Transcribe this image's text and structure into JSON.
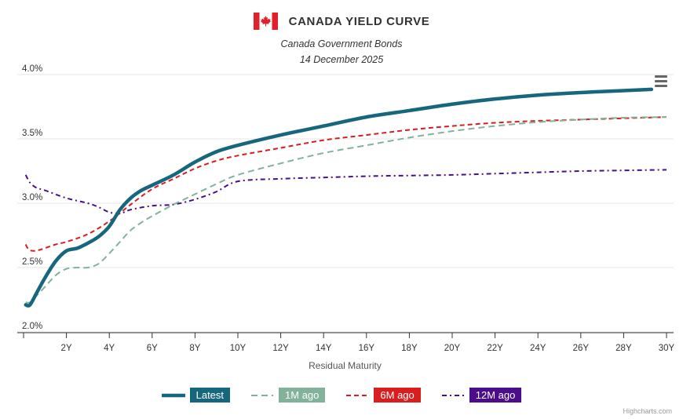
{
  "header": {
    "title": "CANADA YIELD CURVE",
    "subtitle": "Canada Government Bonds",
    "date": "14 December 2025"
  },
  "credits": "Highcharts.com",
  "chart_data": {
    "type": "line",
    "title": "CANADA YIELD CURVE",
    "subtitle": "Canada Government Bonds",
    "xlabel": "Residual Maturity",
    "ylabel": "",
    "xlim": [
      0,
      30
    ],
    "ylim": [
      2.0,
      4.0
    ],
    "x_ticks": [
      "2Y",
      "4Y",
      "6Y",
      "8Y",
      "10Y",
      "12Y",
      "14Y",
      "16Y",
      "18Y",
      "20Y",
      "22Y",
      "24Y",
      "26Y",
      "28Y",
      "30Y"
    ],
    "x_tick_values": [
      2,
      4,
      6,
      8,
      10,
      12,
      14,
      16,
      18,
      20,
      22,
      24,
      26,
      28,
      30
    ],
    "y_ticks": [
      "2.0%",
      "2.5%",
      "3.0%",
      "3.5%",
      "4.0%"
    ],
    "y_tick_values": [
      2.0,
      2.5,
      3.0,
      3.5,
      4.0
    ],
    "legend_position": "bottom-center",
    "series": [
      {
        "name": "Latest",
        "color": "#16677e",
        "dash": "solid",
        "x": [
          0.1,
          0.3,
          0.6,
          1,
          1.5,
          2,
          2.5,
          3,
          3.5,
          4,
          4.5,
          5,
          5.5,
          6,
          7,
          8,
          9,
          10,
          12,
          14,
          16,
          18,
          20,
          22,
          24,
          26,
          28,
          29.3
        ],
        "y": [
          2.21,
          2.21,
          2.3,
          2.42,
          2.55,
          2.63,
          2.65,
          2.69,
          2.74,
          2.82,
          2.95,
          3.04,
          3.1,
          3.14,
          3.22,
          3.32,
          3.4,
          3.45,
          3.53,
          3.6,
          3.67,
          3.72,
          3.77,
          3.81,
          3.84,
          3.86,
          3.875,
          3.885
        ]
      },
      {
        "name": "1M ago",
        "color": "#82b29a",
        "dash": "long-dash",
        "x": [
          0.1,
          0.3,
          0.6,
          1,
          1.5,
          2,
          2.5,
          3,
          3.5,
          4,
          4.5,
          5,
          5.5,
          6,
          7,
          8,
          9,
          10,
          12,
          14,
          16,
          18,
          20,
          22,
          24,
          26,
          28,
          30
        ],
        "y": [
          2.23,
          2.23,
          2.28,
          2.35,
          2.44,
          2.49,
          2.5,
          2.5,
          2.53,
          2.61,
          2.7,
          2.79,
          2.85,
          2.9,
          2.99,
          3.07,
          3.15,
          3.22,
          3.31,
          3.39,
          3.45,
          3.51,
          3.56,
          3.6,
          3.63,
          3.65,
          3.665,
          3.67
        ]
      },
      {
        "name": "6M ago",
        "color": "#d81e1e",
        "dash": "dash",
        "x": [
          0.1,
          0.2,
          0.4,
          0.8,
          1.5,
          2,
          3,
          4,
          5,
          6,
          7,
          8,
          9,
          10,
          12,
          14,
          16,
          18,
          20,
          22,
          24,
          26,
          28,
          30
        ],
        "y": [
          2.68,
          2.65,
          2.63,
          2.64,
          2.68,
          2.7,
          2.76,
          2.86,
          2.99,
          3.11,
          3.19,
          3.27,
          3.33,
          3.37,
          3.43,
          3.49,
          3.53,
          3.57,
          3.6,
          3.625,
          3.64,
          3.65,
          3.66,
          3.67
        ]
      },
      {
        "name": "12M ago",
        "color": "#4b0d8a",
        "dash": "dash-dot",
        "x": [
          0.1,
          0.3,
          0.6,
          1,
          2,
          3,
          3.5,
          4,
          4.5,
          5,
          6,
          7,
          8,
          9,
          10,
          12,
          14,
          16,
          18,
          20,
          22,
          24,
          26,
          28,
          30
        ],
        "y": [
          3.22,
          3.16,
          3.12,
          3.1,
          3.04,
          3.0,
          2.97,
          2.93,
          2.92,
          2.95,
          2.98,
          2.99,
          3.03,
          3.09,
          3.17,
          3.19,
          3.2,
          3.21,
          3.215,
          3.22,
          3.23,
          3.24,
          3.25,
          3.255,
          3.26
        ]
      }
    ]
  }
}
